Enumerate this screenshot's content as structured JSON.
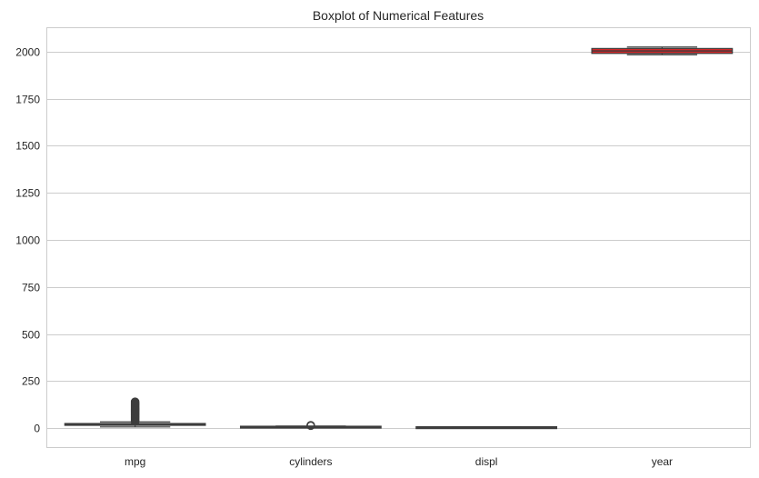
{
  "chart_data": {
    "type": "boxplot",
    "title": "Boxplot of Numerical Features",
    "xlabel": "",
    "ylabel": "",
    "ylim": [
      -100,
      2125
    ],
    "yticks": [
      0,
      250,
      500,
      750,
      1000,
      1250,
      1500,
      1750,
      2000
    ],
    "grid": true,
    "categories": [
      "mpg",
      "cylinders",
      "displ",
      "year"
    ],
    "boxes": [
      {
        "category": "mpg",
        "whisker_low": 7,
        "q1": 17,
        "median": 20,
        "q3": 24,
        "whisker_high": 34,
        "outliers": [
          36,
          40,
          45,
          50,
          55,
          60,
          65,
          70,
          75,
          80,
          85,
          90,
          95,
          100,
          105,
          110,
          115,
          120,
          125,
          130,
          135,
          141
        ],
        "color": "#1f77b4"
      },
      {
        "category": "cylinders",
        "whisker_low": 2,
        "q1": 4,
        "median": 6,
        "q3": 8,
        "whisker_high": 12,
        "outliers": [
          14,
          16
        ],
        "color": "#ff7f0e"
      },
      {
        "category": "displ",
        "whisker_low": 0,
        "q1": 2,
        "median": 3,
        "q3": 4.5,
        "whisker_high": 8,
        "outliers": [],
        "color": "#2ca02c"
      },
      {
        "category": "year",
        "whisker_low": 1984,
        "q1": 1991,
        "median": 2004,
        "q3": 2017,
        "whisker_high": 2025,
        "outliers": [],
        "color": "#d62728"
      }
    ],
    "outlier_markers_cylinders": [
      0,
      1,
      12,
      14,
      16
    ],
    "outlier_markers_displ": [
      0,
      1,
      4,
      6,
      8
    ]
  }
}
